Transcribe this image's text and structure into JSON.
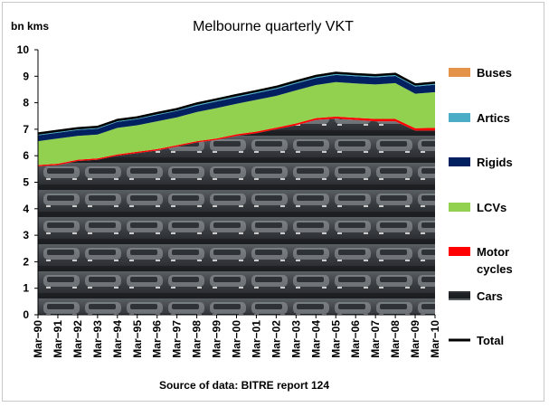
{
  "chart_data": {
    "type": "area",
    "title": "Melbourne quarterly VKT",
    "ylabel": "bn kms",
    "xlabel": "",
    "source": "Source of data: BITRE report 124",
    "ylim": [
      0,
      10
    ],
    "yticks": [
      "0",
      "1",
      "2",
      "3",
      "4",
      "5",
      "6",
      "7",
      "8",
      "9",
      "10"
    ],
    "x_tick_labels": [
      "Mar−90",
      "Mar−91",
      "Mar−92",
      "Mar−93",
      "Mar−94",
      "Mar−95",
      "Mar−96",
      "Mar−97",
      "Mar−98",
      "Mar−99",
      "Mar−00",
      "Mar−01",
      "Mar−02",
      "Mar−03",
      "Mar−04",
      "Mar−05",
      "Mar−06",
      "Mar−07",
      "Mar−08",
      "Mar−09",
      "Mar−10"
    ],
    "x_dates": [
      "Mar-90",
      "Mar-91",
      "Mar-92",
      "Mar-93",
      "Mar-94",
      "Mar-95",
      "Mar-96",
      "Mar-97",
      "Mar-98",
      "Mar-99",
      "Mar-00",
      "Mar-01",
      "Mar-02",
      "Mar-03",
      "Mar-04",
      "Mar-05",
      "Mar-06",
      "Mar-07",
      "Mar-08",
      "Mar-09",
      "Mar-10"
    ],
    "series": [
      {
        "name": "Cars",
        "color": "#7a7a7a",
        "values": [
          5.6,
          5.65,
          5.8,
          5.85,
          6.0,
          6.1,
          6.2,
          6.35,
          6.5,
          6.6,
          6.75,
          6.85,
          7.0,
          7.15,
          7.35,
          7.4,
          7.35,
          7.3,
          7.3,
          6.95,
          6.95
        ]
      },
      {
        "name": "Motor cycles",
        "color": "#ff0000",
        "values": [
          0.05,
          0.05,
          0.05,
          0.05,
          0.05,
          0.05,
          0.05,
          0.05,
          0.05,
          0.05,
          0.06,
          0.06,
          0.06,
          0.07,
          0.07,
          0.08,
          0.08,
          0.09,
          0.09,
          0.09,
          0.1
        ]
      },
      {
        "name": "LCVs",
        "color": "#92d050",
        "values": [
          0.9,
          0.95,
          0.9,
          0.9,
          1.0,
          1.0,
          1.05,
          1.05,
          1.1,
          1.15,
          1.15,
          1.2,
          1.2,
          1.25,
          1.25,
          1.3,
          1.3,
          1.3,
          1.35,
          1.3,
          1.35
        ]
      },
      {
        "name": "Rigids",
        "color": "#002060",
        "values": [
          0.22,
          0.22,
          0.22,
          0.22,
          0.23,
          0.23,
          0.24,
          0.24,
          0.24,
          0.25,
          0.25,
          0.25,
          0.26,
          0.26,
          0.26,
          0.27,
          0.27,
          0.27,
          0.27,
          0.27,
          0.28
        ]
      },
      {
        "name": "Artics",
        "color": "#4bacc6",
        "values": [
          0.04,
          0.04,
          0.04,
          0.04,
          0.04,
          0.04,
          0.04,
          0.04,
          0.05,
          0.05,
          0.05,
          0.05,
          0.05,
          0.05,
          0.05,
          0.05,
          0.05,
          0.05,
          0.05,
          0.05,
          0.05
        ]
      },
      {
        "name": "Buses",
        "color": "#e6934a",
        "values": [
          0.03,
          0.03,
          0.03,
          0.03,
          0.03,
          0.03,
          0.03,
          0.03,
          0.03,
          0.03,
          0.03,
          0.03,
          0.03,
          0.03,
          0.03,
          0.03,
          0.03,
          0.03,
          0.03,
          0.03,
          0.03
        ]
      },
      {
        "name": "Total",
        "color": "#000000",
        "values": [
          6.84,
          6.94,
          7.04,
          7.09,
          7.35,
          7.45,
          7.61,
          7.76,
          7.97,
          8.13,
          8.29,
          8.44,
          8.6,
          8.81,
          9.01,
          9.13,
          9.08,
          9.04,
          9.09,
          8.69,
          8.76
        ]
      }
    ],
    "legend": [
      "Buses",
      "Artics",
      "Rigids",
      "LCVs",
      "Motor cycles",
      "Cars",
      "Total"
    ],
    "legend_placement": "right",
    "grid": false
  }
}
